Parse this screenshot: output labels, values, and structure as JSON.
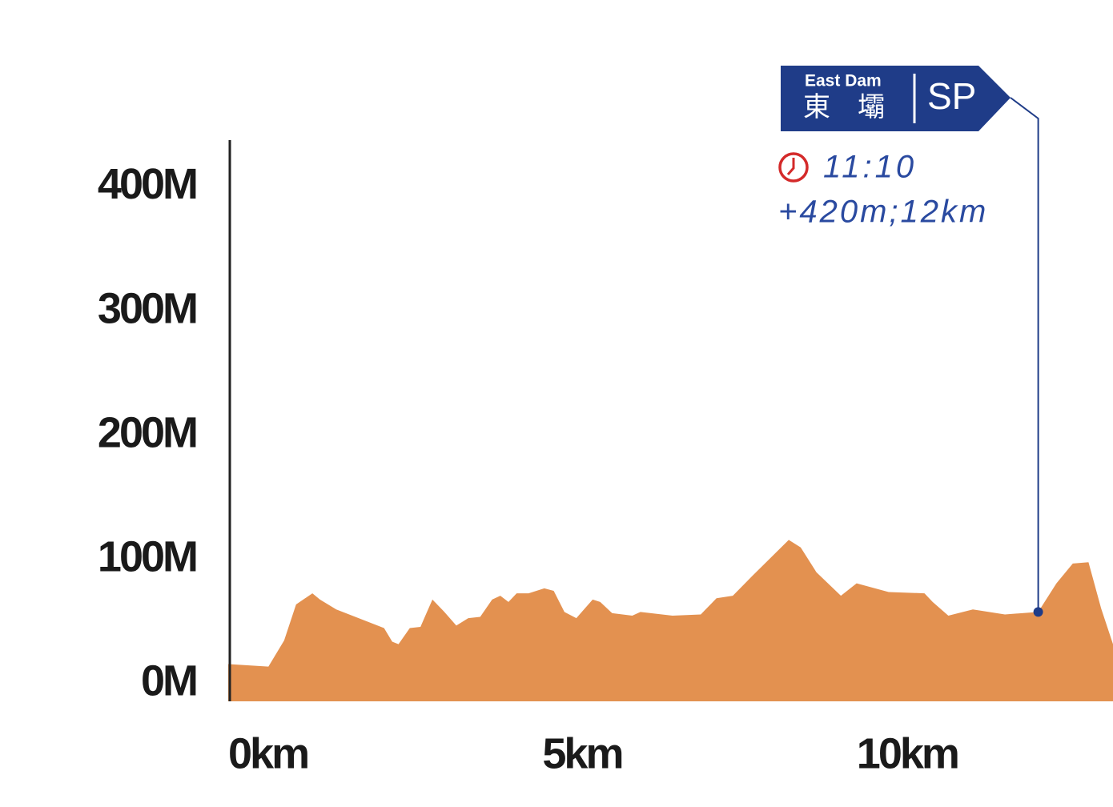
{
  "chart_data": {
    "type": "area",
    "color": "#e39150",
    "x": [
      0,
      0.64,
      0.89,
      1.08,
      1.34,
      1.46,
      1.72,
      2.48,
      2.61,
      2.71,
      2.89,
      3.06,
      3.12,
      3.25,
      3.44,
      3.63,
      3.82,
      4.01,
      4.2,
      4.33,
      4.46,
      4.59,
      4.78,
      5.03,
      5.18,
      5.35,
      5.54,
      5.8,
      5.92,
      6.11,
      6.43,
      6.56,
      7.07,
      7.52,
      7.77,
      8.03,
      8.34,
      8.92,
      9.11,
      9.36,
      9.75,
      10.0,
      10.51,
      11.08,
      11.21,
      11.46,
      11.85,
      12.36,
      12.89,
      13.18,
      13.44,
      13.69,
      13.89,
      14.08
    ],
    "values": [
      16,
      14,
      35,
      64,
      73,
      68,
      60,
      45,
      34,
      32,
      45,
      46,
      53,
      68,
      58,
      47,
      53,
      54,
      68,
      71,
      66,
      73,
      73,
      77,
      75,
      58,
      53,
      68,
      66,
      57,
      55,
      58,
      55,
      56,
      69,
      71,
      87,
      116,
      110,
      90,
      71,
      81,
      74,
      73,
      66,
      55,
      60,
      56,
      58,
      81,
      97,
      98,
      61,
      32
    ],
    "xlim": [
      0,
      14.08
    ],
    "ylim": [
      -14,
      438
    ],
    "xticks": [
      {
        "value": 0,
        "label": "0km"
      },
      {
        "value": 5,
        "label": "5km"
      },
      {
        "value": 10,
        "label": "10km"
      }
    ],
    "yticks": [
      {
        "value": 0,
        "label": "0M"
      },
      {
        "value": 100,
        "label": "100M"
      },
      {
        "value": 200,
        "label": "200M"
      },
      {
        "value": 300,
        "label": "300M"
      },
      {
        "value": 400,
        "label": "400M"
      }
    ],
    "annotation": {
      "x": 12.89,
      "y": 58,
      "station_en": "East Dam",
      "station_zh": "東　壩",
      "code": "SP",
      "time": "11:10",
      "detail": "+420m;12km"
    }
  }
}
